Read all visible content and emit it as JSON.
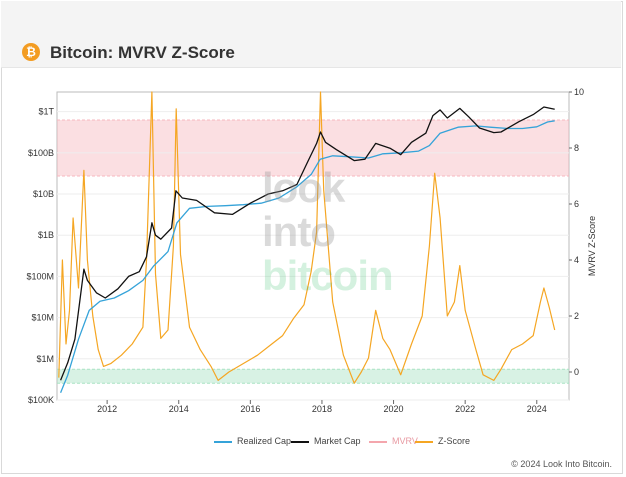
{
  "header": {
    "title": "Bitcoin: MVRV Z-Score",
    "logo_glyph": "₿",
    "logo_icon": "bitcoin-logo-icon"
  },
  "watermark": {
    "line1": "look",
    "line2": "into",
    "line3": "bitcoin"
  },
  "chart_data": {
    "type": "line",
    "title": "Bitcoin: MVRV Z-Score",
    "x_tick_labels": [
      "2012",
      "2014",
      "2016",
      "2018",
      "2020",
      "2022",
      "2024"
    ],
    "x_range": [
      2010.6,
      2024.9
    ],
    "y_left": {
      "scale": "log",
      "range": [
        100000,
        3000000000000
      ],
      "ticks": [
        {
          "value": 100000,
          "label": "$100K"
        },
        {
          "value": 1000000,
          "label": "$1M"
        },
        {
          "value": 10000000,
          "label": "$10M"
        },
        {
          "value": 100000000,
          "label": "$100M"
        },
        {
          "value": 1000000000,
          "label": "$1B"
        },
        {
          "value": 10000000000,
          "label": "$10B"
        },
        {
          "value": 100000000000,
          "label": "$100B"
        },
        {
          "value": 1000000000000,
          "label": "$1T"
        }
      ]
    },
    "y_right": {
      "label": "MVRV Z-Score",
      "range": [
        -1,
        10
      ],
      "ticks": [
        0,
        2,
        4,
        6,
        8,
        10
      ]
    },
    "bands": [
      {
        "name": "overvalued-zone",
        "from": 7,
        "to": 9,
        "color": "#f7b7bf"
      },
      {
        "name": "undervalued-zone",
        "from": -0.4,
        "to": 0.1,
        "color": "#a9e3c3"
      }
    ],
    "series": [
      {
        "name": "Realized Cap",
        "axis": "left",
        "color": "#35a3d9",
        "x": [
          2010.7,
          2010.9,
          2011.2,
          2011.5,
          2011.8,
          2012.2,
          2012.6,
          2013.0,
          2013.3,
          2013.7,
          2013.95,
          2014.3,
          2014.8,
          2015.3,
          2015.8,
          2016.3,
          2016.8,
          2017.3,
          2017.7,
          2017.95,
          2018.3,
          2018.8,
          2019.3,
          2019.7,
          2020.2,
          2020.7,
          2021.0,
          2021.3,
          2021.8,
          2022.3,
          2022.7,
          2023.2,
          2023.6,
          2024.0,
          2024.3,
          2024.5
        ],
        "values": [
          150000,
          400000,
          3000000,
          15000000,
          25000000,
          30000000,
          45000000,
          80000000,
          180000000,
          400000000,
          2000000000,
          4500000000,
          5000000000,
          5200000000,
          5500000000,
          6000000000,
          8000000000,
          15000000000,
          30000000000,
          70000000000,
          85000000000,
          80000000000,
          75000000000,
          95000000000,
          100000000000,
          110000000000,
          150000000000,
          300000000000,
          420000000000,
          450000000000,
          420000000000,
          390000000000,
          390000000000,
          430000000000,
          560000000000,
          600000000000
        ]
      },
      {
        "name": "Market Cap",
        "axis": "left",
        "color": "#111111",
        "x": [
          2010.7,
          2010.9,
          2011.1,
          2011.35,
          2011.45,
          2011.7,
          2011.95,
          2012.3,
          2012.6,
          2012.9,
          2013.1,
          2013.25,
          2013.35,
          2013.5,
          2013.8,
          2013.92,
          2014.1,
          2014.5,
          2015.0,
          2015.5,
          2016.0,
          2016.5,
          2016.9,
          2017.3,
          2017.6,
          2017.85,
          2017.96,
          2018.1,
          2018.4,
          2018.9,
          2019.2,
          2019.5,
          2019.9,
          2020.2,
          2020.5,
          2020.9,
          2021.1,
          2021.3,
          2021.5,
          2021.85,
          2022.1,
          2022.4,
          2022.8,
          2023.0,
          2023.5,
          2023.9,
          2024.2,
          2024.5
        ],
        "values": [
          300000,
          800000,
          3000000,
          150000000,
          80000000,
          40000000,
          30000000,
          50000000,
          100000000,
          130000000,
          300000000,
          2000000000,
          1000000000,
          800000000,
          1500000000,
          12000000000,
          8000000000,
          7000000000,
          3500000000,
          3200000000,
          6000000000,
          10000000000,
          12000000000,
          17000000000,
          60000000000,
          170000000000,
          320000000000,
          180000000000,
          120000000000,
          65000000000,
          70000000000,
          170000000000,
          130000000000,
          90000000000,
          180000000000,
          300000000000,
          800000000000,
          1100000000000,
          700000000000,
          1200000000000,
          750000000000,
          400000000000,
          310000000000,
          320000000000,
          570000000000,
          850000000000,
          1300000000000,
          1150000000000
        ]
      },
      {
        "name": "MVRV",
        "axis": "right",
        "color": "#f4a6ad",
        "values": []
      },
      {
        "name": "Z-Score",
        "axis": "right",
        "color": "#f5a623",
        "x": [
          2010.65,
          2010.75,
          2010.85,
          2010.95,
          2011.05,
          2011.2,
          2011.35,
          2011.45,
          2011.6,
          2011.75,
          2011.9,
          2012.1,
          2012.4,
          2012.7,
          2013.0,
          2013.1,
          2013.25,
          2013.35,
          2013.5,
          2013.7,
          2013.85,
          2013.93,
          2014.05,
          2014.3,
          2014.6,
          2014.9,
          2015.1,
          2015.4,
          2015.8,
          2016.2,
          2016.6,
          2016.9,
          2017.2,
          2017.5,
          2017.7,
          2017.85,
          2017.96,
          2018.05,
          2018.3,
          2018.6,
          2018.9,
          2019.1,
          2019.3,
          2019.5,
          2019.7,
          2019.9,
          2020.2,
          2020.5,
          2020.8,
          2021.0,
          2021.15,
          2021.3,
          2021.5,
          2021.7,
          2021.85,
          2022.0,
          2022.3,
          2022.5,
          2022.8,
          2023.0,
          2023.3,
          2023.6,
          2023.9,
          2024.1,
          2024.2,
          2024.35,
          2024.5
        ],
        "values": [
          -0.2,
          4.0,
          1.0,
          2.2,
          5.5,
          3.0,
          7.2,
          4.0,
          2.0,
          0.8,
          0.2,
          0.3,
          0.6,
          1.0,
          1.6,
          4.0,
          10.0,
          3.5,
          1.2,
          1.5,
          4.5,
          9.4,
          4.2,
          1.6,
          0.8,
          0.2,
          -0.3,
          0.0,
          0.3,
          0.6,
          1.0,
          1.3,
          1.9,
          2.4,
          3.6,
          5.0,
          10.0,
          6.5,
          2.5,
          0.6,
          -0.4,
          0.0,
          0.5,
          2.2,
          1.2,
          0.8,
          -0.1,
          1.0,
          2.0,
          4.5,
          7.1,
          5.5,
          2.0,
          2.5,
          3.8,
          2.2,
          0.8,
          -0.1,
          -0.3,
          0.1,
          0.8,
          1.0,
          1.3,
          2.5,
          3.0,
          2.3,
          1.5
        ]
      }
    ],
    "legend": [
      {
        "name": "Realized Cap",
        "color": "#35a3d9"
      },
      {
        "name": "Market Cap",
        "color": "#111111"
      },
      {
        "name": "MVRV",
        "color": "#f4a6ad"
      },
      {
        "name": "Z-Score",
        "color": "#f5a623"
      }
    ]
  },
  "footer": {
    "copyright": "© 2024 Look Into Bitcoin."
  }
}
